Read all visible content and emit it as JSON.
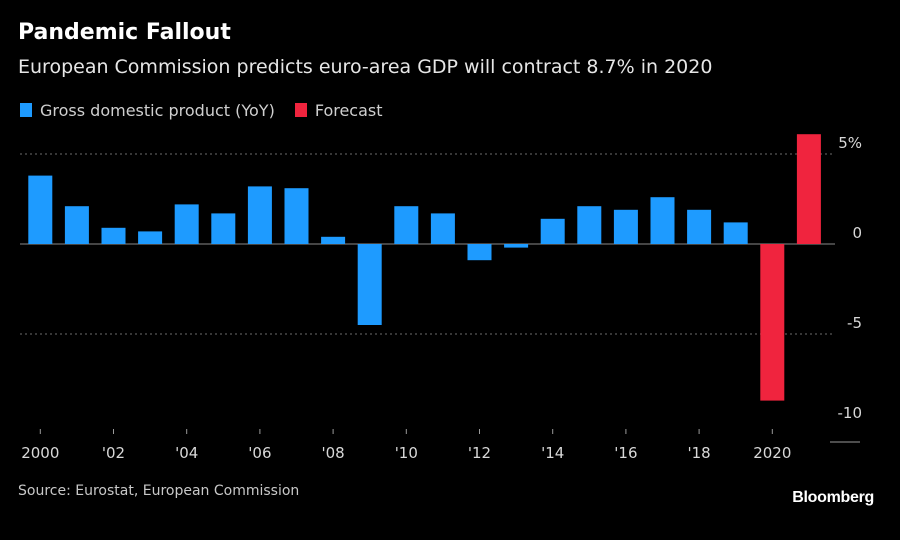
{
  "header": {
    "title": "Pandemic Fallout",
    "subtitle": "European Commission predicts euro-area GDP will contract 8.7% in 2020"
  },
  "legend": [
    {
      "label": "Gross domestic product (YoY)",
      "color": "#1e9bff"
    },
    {
      "label": "Forecast",
      "color": "#f0243e"
    }
  ],
  "footer": {
    "source": "Source: Eurostat, European Commission",
    "brand": "Bloomberg"
  },
  "chart_data": {
    "type": "bar",
    "title": "Pandemic Fallout",
    "xlabel": "",
    "ylabel": "",
    "ylim": [
      -10,
      6
    ],
    "grid": true,
    "legend_position": "top-left",
    "y_ticks": [
      {
        "value": 5,
        "label": "5%"
      },
      {
        "value": 0,
        "label": "0"
      },
      {
        "value": -5,
        "label": "-5"
      },
      {
        "value": -10,
        "label": "-10"
      }
    ],
    "x_tick_labels": [
      "2000",
      "'02",
      "'04",
      "'06",
      "'08",
      "'10",
      "'12",
      "'14",
      "'16",
      "'18",
      "2020"
    ],
    "categories": [
      "2000",
      "2001",
      "2002",
      "2003",
      "2004",
      "2005",
      "2006",
      "2007",
      "2008",
      "2009",
      "2010",
      "2011",
      "2012",
      "2013",
      "2014",
      "2015",
      "2016",
      "2017",
      "2018",
      "2019",
      "2020",
      "2021"
    ],
    "series": [
      {
        "name": "Gross domestic product (YoY)",
        "color": "#1e9bff",
        "values": [
          3.8,
          2.1,
          0.9,
          0.7,
          2.2,
          1.7,
          3.2,
          3.1,
          0.4,
          -4.5,
          2.1,
          1.7,
          -0.9,
          -0.2,
          1.4,
          2.1,
          1.9,
          2.6,
          1.9,
          1.2,
          null,
          null
        ]
      },
      {
        "name": "Forecast",
        "color": "#f0243e",
        "values": [
          null,
          null,
          null,
          null,
          null,
          null,
          null,
          null,
          null,
          null,
          null,
          null,
          null,
          null,
          null,
          null,
          null,
          null,
          null,
          null,
          -8.7,
          6.1
        ]
      }
    ]
  }
}
